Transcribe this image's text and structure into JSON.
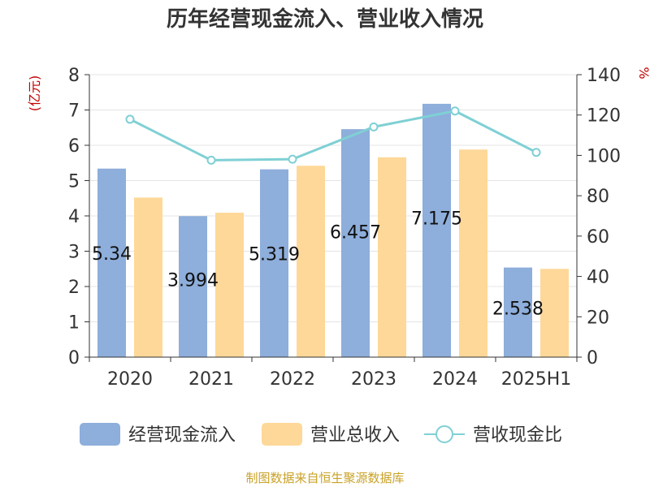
{
  "chart_data": {
    "type": "bar",
    "title": "历年经营现金流入、营业收入情况",
    "categories": [
      "2020",
      "2021",
      "2022",
      "2023",
      "2024",
      "2025H1"
    ],
    "left_axis": {
      "unit": "(亿元)",
      "ylim": [
        0,
        8
      ],
      "ticks": [
        "0",
        "1",
        "2",
        "3",
        "4",
        "5",
        "6",
        "7",
        "8"
      ]
    },
    "right_axis": {
      "unit": "%",
      "ylim": [
        0,
        140
      ],
      "ticks": [
        "0",
        "20",
        "40",
        "60",
        "80",
        "100",
        "120",
        "140"
      ]
    },
    "series": [
      {
        "name": "经营现金流入",
        "kind": "bar",
        "axis": "left",
        "color": "#8eaedb",
        "values": [
          5.34,
          3.994,
          5.319,
          6.457,
          7.175,
          2.538
        ],
        "labels": [
          "5.34",
          "3.994",
          "5.319",
          "6.457",
          "7.175",
          "2.538"
        ]
      },
      {
        "name": "营业总收入",
        "kind": "bar",
        "axis": "left",
        "color": "#fed898",
        "values": [
          4.52,
          4.09,
          5.42,
          5.66,
          5.88,
          2.5
        ]
      },
      {
        "name": "营收现金比",
        "kind": "line",
        "axis": "right",
        "color": "#7fd0d4",
        "values": [
          117.9,
          97.6,
          98.1,
          114.1,
          122.0,
          101.5
        ]
      }
    ],
    "grid": true,
    "legend_position": "bottom"
  },
  "footer": {
    "source": "制图数据来自恒生聚源数据库"
  }
}
